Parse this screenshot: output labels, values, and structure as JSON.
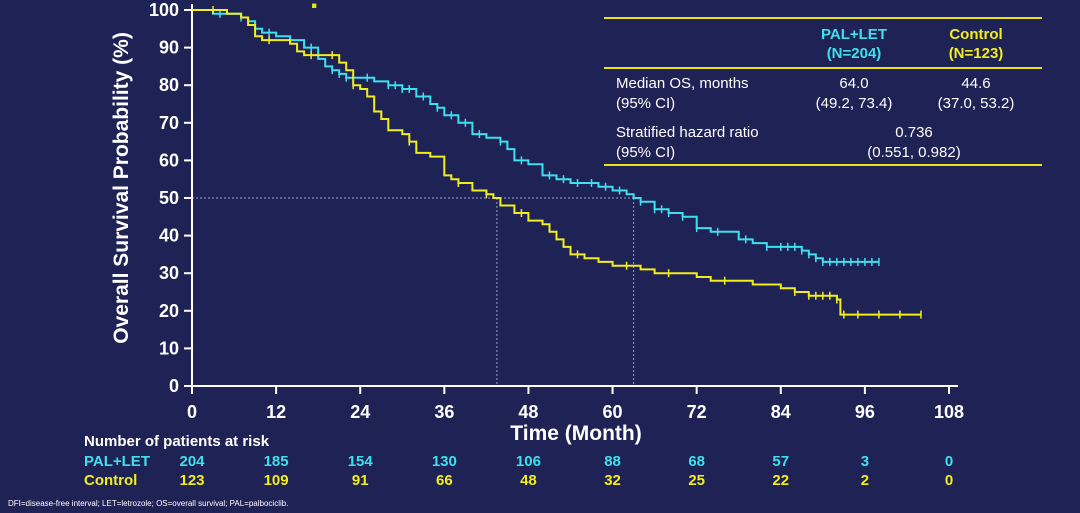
{
  "chart_data": {
    "type": "line",
    "subtype": "kaplan-meier",
    "ylabel": "Overall Survival Probability (%)",
    "xlabel": "Time (Month)",
    "xlim": [
      0,
      108
    ],
    "ylim": [
      0,
      100
    ],
    "x_ticks": [
      "0",
      "12",
      "24",
      "36",
      "48",
      "60",
      "72",
      "84",
      "96",
      "108"
    ],
    "y_ticks": [
      "0",
      "10",
      "20",
      "30",
      "40",
      "50",
      "60",
      "70",
      "80",
      "90",
      "100"
    ],
    "median_reference": {
      "y": 50,
      "x_values": [
        43.5,
        63
      ]
    },
    "series": [
      {
        "name": "PAL+LET",
        "color": "#3fe0ee",
        "points": [
          [
            0,
            100
          ],
          [
            2,
            100
          ],
          [
            3,
            99
          ],
          [
            6,
            99
          ],
          [
            7,
            98
          ],
          [
            8,
            97
          ],
          [
            9,
            95
          ],
          [
            10,
            94
          ],
          [
            12,
            93
          ],
          [
            14,
            92
          ],
          [
            16,
            90
          ],
          [
            18,
            87
          ],
          [
            19,
            85
          ],
          [
            20,
            84
          ],
          [
            21,
            83
          ],
          [
            22,
            82
          ],
          [
            24,
            82
          ],
          [
            26,
            81
          ],
          [
            28,
            80
          ],
          [
            30,
            79
          ],
          [
            32,
            77
          ],
          [
            34,
            75
          ],
          [
            35,
            74
          ],
          [
            36,
            72
          ],
          [
            38,
            70
          ],
          [
            40,
            67
          ],
          [
            42,
            66
          ],
          [
            44,
            65
          ],
          [
            45,
            63
          ],
          [
            46,
            60
          ],
          [
            48,
            59
          ],
          [
            50,
            56
          ],
          [
            52,
            55
          ],
          [
            54,
            54
          ],
          [
            56,
            54
          ],
          [
            58,
            53
          ],
          [
            60,
            52
          ],
          [
            62,
            51
          ],
          [
            63,
            50
          ],
          [
            64,
            49
          ],
          [
            66,
            47
          ],
          [
            68,
            46
          ],
          [
            70,
            45
          ],
          [
            72,
            42
          ],
          [
            74,
            41
          ],
          [
            76,
            41
          ],
          [
            78,
            39
          ],
          [
            80,
            38
          ],
          [
            82,
            37
          ],
          [
            84,
            37
          ],
          [
            86,
            37
          ],
          [
            87,
            36
          ],
          [
            88,
            35
          ],
          [
            89,
            34
          ],
          [
            90,
            33
          ],
          [
            92,
            33
          ],
          [
            94,
            33
          ],
          [
            96,
            33
          ],
          [
            98,
            33
          ]
        ],
        "censor_x": [
          4,
          7,
          11,
          14,
          17,
          20,
          21,
          22,
          25,
          28,
          29,
          30,
          31,
          33,
          35,
          37,
          39,
          41,
          44,
          47,
          51,
          53,
          55,
          57,
          59,
          61,
          64,
          66,
          67,
          68,
          70,
          72,
          75,
          79,
          82,
          84,
          85,
          86,
          87,
          88,
          89,
          90,
          91,
          92,
          93,
          94,
          95,
          96,
          97,
          98
        ]
      },
      {
        "name": "Control",
        "color": "#f2ee1c",
        "points": [
          [
            0,
            100
          ],
          [
            2,
            100
          ],
          [
            5,
            99
          ],
          [
            7,
            98
          ],
          [
            8,
            96
          ],
          [
            9,
            93
          ],
          [
            10,
            92
          ],
          [
            12,
            92
          ],
          [
            14,
            91
          ],
          [
            15,
            89
          ],
          [
            16,
            88
          ],
          [
            20,
            88
          ],
          [
            21,
            86
          ],
          [
            22,
            84
          ],
          [
            23,
            80
          ],
          [
            24,
            79
          ],
          [
            25,
            77
          ],
          [
            26,
            73
          ],
          [
            27,
            71
          ],
          [
            28,
            68
          ],
          [
            30,
            67
          ],
          [
            31,
            65
          ],
          [
            32,
            62
          ],
          [
            34,
            61
          ],
          [
            36,
            56
          ],
          [
            37,
            55
          ],
          [
            38,
            54
          ],
          [
            40,
            52
          ],
          [
            42,
            51
          ],
          [
            43,
            50
          ],
          [
            44,
            48
          ],
          [
            46,
            46
          ],
          [
            48,
            44
          ],
          [
            50,
            43
          ],
          [
            51,
            41
          ],
          [
            52,
            39
          ],
          [
            53,
            37
          ],
          [
            54,
            35
          ],
          [
            56,
            34
          ],
          [
            58,
            33
          ],
          [
            60,
            32
          ],
          [
            62,
            32
          ],
          [
            64,
            31
          ],
          [
            66,
            30
          ],
          [
            68,
            30
          ],
          [
            70,
            30
          ],
          [
            72,
            29
          ],
          [
            74,
            28
          ],
          [
            78,
            28
          ],
          [
            80,
            27
          ],
          [
            84,
            26
          ],
          [
            86,
            25
          ],
          [
            88,
            24
          ],
          [
            90,
            24
          ],
          [
            92,
            23
          ],
          [
            92.5,
            19
          ],
          [
            96,
            19
          ],
          [
            104,
            19
          ]
        ],
        "censor_x": [
          3,
          11,
          17,
          20,
          23,
          31,
          38,
          42,
          47,
          55,
          62,
          68,
          76,
          86,
          88,
          89,
          90,
          91,
          92,
          93,
          95,
          98,
          101,
          104
        ]
      }
    ],
    "risk_table": {
      "title": "Number of patients at risk",
      "times": [
        0,
        12,
        24,
        36,
        48,
        60,
        72,
        84,
        96,
        108
      ],
      "rows": [
        {
          "label": "PAL+LET",
          "values": [
            "204",
            "185",
            "154",
            "130",
            "106",
            "88",
            "68",
            "57",
            "3",
            "0"
          ]
        },
        {
          "label": "Control",
          "values": [
            "123",
            "109",
            "91",
            "66",
            "48",
            "32",
            "25",
            "22",
            "2",
            "0"
          ]
        }
      ]
    },
    "stats_table": {
      "col1": "PAL+LET",
      "col1_n": "(N=204)",
      "col2": "Control",
      "col2_n": "(N=123)",
      "median_label": "Median OS, months",
      "median_ci_label": "(95% CI)",
      "median_pal": "64.0",
      "median_pal_ci": "(49.2, 73.4)",
      "median_ctrl": "44.6",
      "median_ctrl_ci": "(37.0, 53.2)",
      "hr_label": "Stratified hazard ratio",
      "hr_ci_label": "(95% CI)",
      "hr_value": "0.736",
      "hr_ci": "(0.551, 0.982)"
    }
  },
  "footnote": "DFI=disease-free interval; LET=letrozole; OS=overall survival; PAL=palbociclib."
}
